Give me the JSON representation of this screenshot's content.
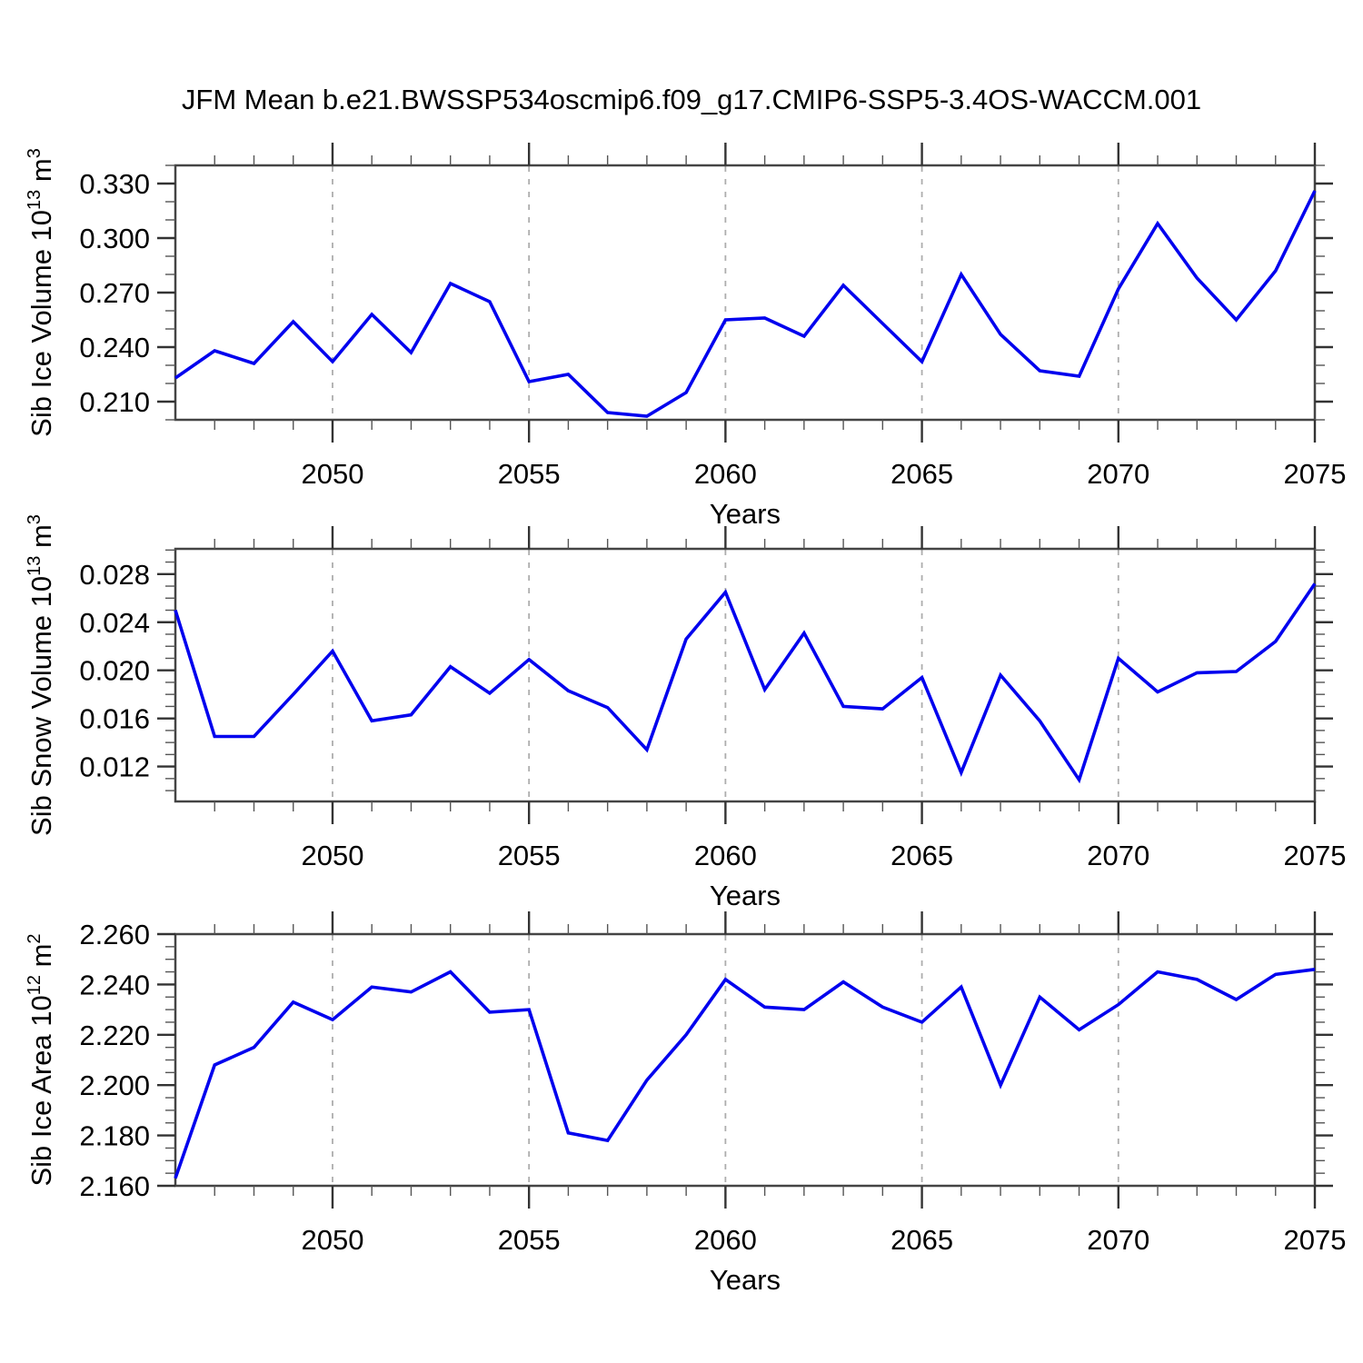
{
  "title": "JFM Mean b.e21.BWSSP534oscmip6.f09_g17.CMIP6-SSP5-3.4OS-WACCM.001",
  "colors": {
    "line": "#0000EE",
    "grid": "#ADADAD",
    "axis": "#444444",
    "tick_major": "#333333",
    "tick_minor": "#555555"
  },
  "chart_data": {
    "type": "line",
    "xlabel": "Years",
    "x": [
      2046,
      2047,
      2048,
      2049,
      2050,
      2051,
      2052,
      2053,
      2054,
      2055,
      2056,
      2057,
      2058,
      2059,
      2060,
      2061,
      2062,
      2063,
      2064,
      2065,
      2066,
      2067,
      2068,
      2069,
      2070,
      2071,
      2072,
      2073,
      2074,
      2075
    ],
    "xlim": [
      2046,
      2075
    ],
    "xticks": [
      2050,
      2055,
      2060,
      2065,
      2070,
      2075
    ],
    "x_minor_step": 1,
    "grid_years": [
      2050,
      2055,
      2060,
      2065,
      2070
    ],
    "legend": "none",
    "grid": "vertical-dashed",
    "panels": [
      {
        "name": "sib-ice-volume",
        "ylabel": "Sib Ice Volume 10^13 m^3",
        "ylabel_parts": {
          "main": "Sib Ice Volume 10",
          "sup1": "13",
          "mid": " m",
          "sup2": "3"
        },
        "ylim": [
          0.2,
          0.34
        ],
        "ytick_vals": [
          0.33,
          0.3,
          0.27,
          0.24,
          0.21
        ],
        "ytick_labels": [
          "0.330",
          "0.300",
          "0.270",
          "0.240",
          "0.210"
        ],
        "y_minor_step": 0.01,
        "values": [
          0.223,
          0.238,
          0.231,
          0.254,
          0.232,
          0.258,
          0.237,
          0.275,
          0.265,
          0.221,
          0.225,
          0.204,
          0.202,
          0.215,
          0.255,
          0.256,
          0.246,
          0.274,
          0.253,
          0.232,
          0.28,
          0.247,
          0.227,
          0.224,
          0.272,
          0.308,
          0.278,
          0.255,
          0.282,
          0.326
        ]
      },
      {
        "name": "sib-snow-volume",
        "ylabel": "Sib Snow Volume 10^13 m^3",
        "ylabel_parts": {
          "main": "Sib Snow Volume 10",
          "sup1": "13",
          "mid": " m",
          "sup2": "3"
        },
        "ylim": [
          0.0091,
          0.0301
        ],
        "ytick_vals": [
          0.028,
          0.024,
          0.02,
          0.016,
          0.012
        ],
        "ytick_labels": [
          "0.028",
          "0.024",
          "0.020",
          "0.016",
          "0.012"
        ],
        "y_minor_step": 0.001,
        "values": [
          0.025,
          0.0145,
          0.0145,
          0.018,
          0.0216,
          0.0158,
          0.0163,
          0.0203,
          0.0181,
          0.0209,
          0.0183,
          0.0169,
          0.0134,
          0.0226,
          0.0265,
          0.0184,
          0.0231,
          0.017,
          0.0168,
          0.0194,
          0.0115,
          0.0196,
          0.0158,
          0.0109,
          0.021,
          0.0182,
          0.0198,
          0.0199,
          0.0224,
          0.0272
        ]
      },
      {
        "name": "sib-ice-area",
        "ylabel": "Sib Ice Area 10^12 m^2",
        "ylabel_parts": {
          "main": "Sib Ice Area 10",
          "sup1": "12",
          "mid": " m",
          "sup2": "2"
        },
        "ylim": [
          2.16,
          2.26
        ],
        "ytick_vals": [
          2.26,
          2.24,
          2.22,
          2.2,
          2.18,
          2.16
        ],
        "ytick_labels": [
          "2.260",
          "2.240",
          "2.220",
          "2.200",
          "2.180",
          "2.160"
        ],
        "y_minor_step": 0.005,
        "values": [
          2.163,
          2.208,
          2.215,
          2.233,
          2.226,
          2.239,
          2.237,
          2.245,
          2.229,
          2.23,
          2.181,
          2.178,
          2.202,
          2.22,
          2.242,
          2.231,
          2.23,
          2.241,
          2.231,
          2.225,
          2.239,
          2.2,
          2.235,
          2.222,
          2.232,
          2.245,
          2.242,
          2.234,
          2.244,
          2.246
        ]
      }
    ]
  }
}
